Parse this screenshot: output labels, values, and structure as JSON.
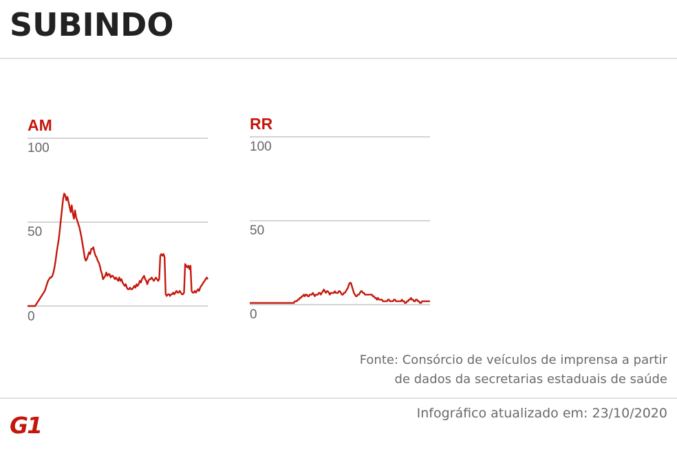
{
  "title": "SUBINDO",
  "source_line1": "Fonte: Consórcio de veículos de imprensa a partir",
  "source_line2": "de dados da secretarias estaduais de saúde",
  "updated": "Infográfico atualizado em: 23/10/2020",
  "logo_text": "G1",
  "colors": {
    "line": "#c4170c",
    "label": "#c4170c",
    "grid": "#bbbbbb",
    "title": "#222222"
  },
  "chart_data": [
    {
      "type": "line",
      "title": "AM",
      "y_ticks": [
        "100",
        "50",
        "0"
      ],
      "ylim": [
        0,
        100
      ],
      "grid": true,
      "values": [
        0,
        0,
        0,
        0,
        0,
        0,
        0,
        0,
        1,
        2,
        3,
        4,
        5,
        6,
        7,
        8,
        9,
        11,
        13,
        15,
        16,
        17,
        17,
        18,
        20,
        23,
        27,
        32,
        36,
        40,
        46,
        52,
        58,
        64,
        67,
        66,
        63,
        65,
        62,
        59,
        56,
        60,
        55,
        52,
        57,
        53,
        51,
        49,
        47,
        44,
        41,
        37,
        33,
        29,
        27,
        28,
        30,
        32,
        31,
        34,
        34,
        35,
        32,
        30,
        29,
        27,
        26,
        24,
        21,
        19,
        16,
        17,
        18,
        20,
        18,
        19,
        19,
        17,
        18,
        18,
        17,
        16,
        17,
        16,
        15,
        17,
        15,
        16,
        14,
        13,
        12,
        13,
        11,
        10,
        10,
        11,
        10,
        10,
        11,
        12,
        11,
        13,
        12,
        13,
        15,
        14,
        16,
        17,
        18,
        16,
        15,
        13,
        15,
        16,
        16,
        17,
        16,
        15,
        16,
        17,
        16,
        15,
        16,
        30,
        31,
        30,
        31,
        29,
        7,
        6,
        7,
        7,
        6,
        7,
        7,
        8,
        7,
        8,
        9,
        8,
        8,
        9,
        8,
        7,
        7,
        8,
        25,
        24,
        23,
        24,
        22,
        24,
        9,
        8,
        8,
        9,
        8,
        9,
        10,
        9,
        11,
        12,
        13,
        14,
        15,
        16,
        17,
        16
      ]
    },
    {
      "type": "line",
      "title": "RR",
      "y_ticks": [
        "100",
        "50",
        "0"
      ],
      "ylim": [
        0,
        100
      ],
      "grid": true,
      "values": [
        1,
        1,
        1,
        1,
        1,
        1,
        1,
        1,
        1,
        1,
        1,
        1,
        1,
        1,
        1,
        1,
        1,
        1,
        1,
        1,
        1,
        1,
        1,
        1,
        1,
        1,
        1,
        1,
        1,
        1,
        1,
        1,
        1,
        1,
        1,
        1,
        1,
        1,
        1,
        1,
        1,
        1,
        1,
        1,
        1,
        2,
        2,
        2,
        3,
        3,
        4,
        4,
        5,
        5,
        6,
        5,
        6,
        6,
        5,
        5,
        6,
        6,
        6,
        7,
        6,
        5,
        6,
        6,
        6,
        7,
        7,
        6,
        7,
        8,
        9,
        8,
        7,
        8,
        8,
        7,
        6,
        7,
        7,
        7,
        7,
        8,
        7,
        7,
        7,
        8,
        8,
        7,
        6,
        6,
        7,
        7,
        8,
        9,
        10,
        12,
        13,
        13,
        11,
        9,
        7,
        6,
        5,
        5,
        6,
        6,
        7,
        8,
        8,
        7,
        7,
        6,
        6,
        6,
        6,
        6,
        6,
        6,
        6,
        5,
        5,
        4,
        4,
        3,
        4,
        3,
        3,
        3,
        3,
        2,
        2,
        2,
        2,
        2,
        3,
        3,
        2,
        2,
        2,
        2,
        3,
        3,
        2,
        2,
        2,
        2,
        2,
        2,
        3,
        2,
        2,
        1,
        1,
        2,
        2,
        3,
        3,
        4,
        3,
        3,
        2,
        2,
        3,
        3,
        2,
        2,
        1,
        1,
        2,
        2,
        2,
        2,
        2,
        2,
        2,
        2,
        2
      ]
    }
  ]
}
